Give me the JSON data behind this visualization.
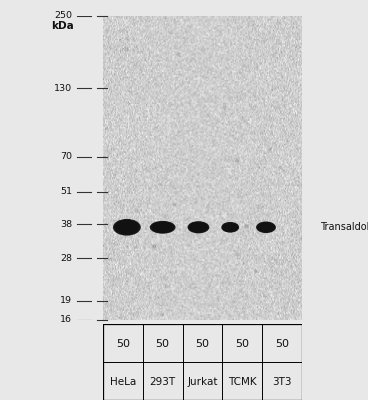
{
  "fig_width": 3.68,
  "fig_height": 4.0,
  "dpi": 100,
  "background_color": "#e8e8e8",
  "blot_bg_color": "#f0f0f0",
  "kda_label": "kDa",
  "mw_marks": [
    250,
    130,
    70,
    51,
    38,
    28,
    19,
    16
  ],
  "lane_labels": [
    "HeLa",
    "293T",
    "Jurkat",
    "TCMK",
    "3T3"
  ],
  "lane_loads": [
    "50",
    "50",
    "50",
    "50",
    "50"
  ],
  "band_kda": 37,
  "noise_seed": 42,
  "table_row1": [
    "50",
    "50",
    "50",
    "50",
    "50"
  ],
  "table_row2": [
    "HeLa",
    "293T",
    "Jurkat",
    "TCMK",
    "3T3"
  ]
}
